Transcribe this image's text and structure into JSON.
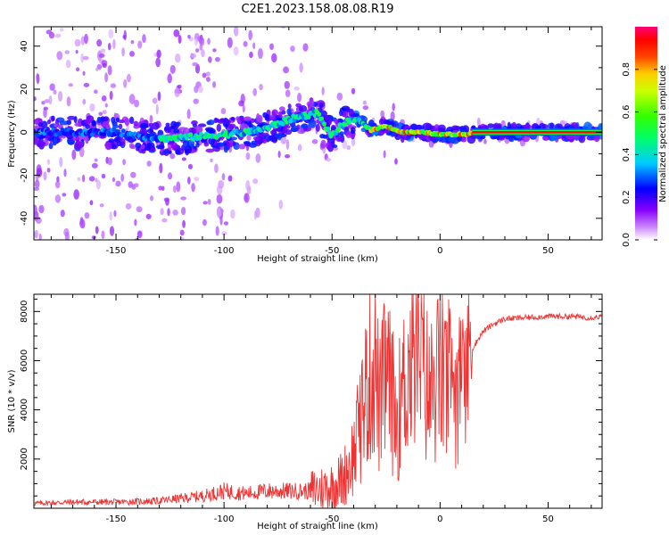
{
  "title": "C2E1.2023.158.08.08.R19",
  "colors": {
    "line": "#ee3333",
    "frame": "#000000"
  },
  "chart_data": [
    {
      "type": "heatmap",
      "xlabel": "Height of straight line (km)",
      "ylabel": "Frequency (Hz)",
      "xlim": [
        -188,
        75
      ],
      "ylim": [
        -50,
        49
      ],
      "x_ticks": [
        -150,
        -100,
        -50,
        0,
        50
      ],
      "y_ticks": [
        -40,
        -20,
        0,
        20,
        40
      ],
      "colorbar": {
        "label": "Normalized spectral amplitude",
        "range": [
          0.0,
          1.0
        ],
        "ticks": [
          0.0,
          0.2,
          0.4,
          0.6,
          0.8
        ],
        "tick_labels": [
          "0.0",
          "0.2",
          "0.4",
          "0.6",
          "0.8"
        ]
      },
      "ridge": [
        {
          "x": -188,
          "y": 0
        },
        {
          "x": -150,
          "y": 0
        },
        {
          "x": -130,
          "y": -3
        },
        {
          "x": -110,
          "y": -2
        },
        {
          "x": -90,
          "y": 0
        },
        {
          "x": -80,
          "y": 2
        },
        {
          "x": -70,
          "y": 6
        },
        {
          "x": -57,
          "y": 9
        },
        {
          "x": -50,
          "y": -2
        },
        {
          "x": -45,
          "y": 4
        },
        {
          "x": -38,
          "y": 6
        },
        {
          "x": -32,
          "y": 1
        },
        {
          "x": -25,
          "y": 3
        },
        {
          "x": -18,
          "y": 0
        },
        {
          "x": -8,
          "y": 0
        },
        {
          "x": 0,
          "y": -1
        },
        {
          "x": 10,
          "y": -1
        },
        {
          "x": 20,
          "y": 0
        },
        {
          "x": 75,
          "y": 0
        }
      ]
    },
    {
      "type": "line",
      "xlabel": "Height of straight line (km)",
      "ylabel": "SNR (10 * v/v)",
      "xlim": [
        -188,
        75
      ],
      "ylim": [
        0,
        8700
      ],
      "x_ticks": [
        -150,
        -100,
        -50,
        0,
        50
      ],
      "y_ticks": [
        2000,
        4000,
        6000,
        8000
      ],
      "series": [
        {
          "x": [
            -188,
            -170,
            -150,
            -130,
            -110,
            -100,
            -90,
            -80,
            -70,
            -60,
            -50,
            -45,
            -40,
            -38,
            -35,
            -30,
            -28,
            -25,
            -20,
            -15,
            -10,
            -5,
            0,
            5,
            10,
            15,
            20,
            25,
            30,
            40,
            50,
            60,
            70,
            75
          ],
          "y": [
            200,
            250,
            250,
            300,
            500,
            700,
            600,
            700,
            700,
            700,
            900,
            1200,
            2200,
            3000,
            4500,
            6000,
            4000,
            5500,
            3600,
            5600,
            6500,
            4600,
            5500,
            5000,
            5600,
            6500,
            7200,
            7500,
            7700,
            7750,
            7800,
            7800,
            7750,
            7800
          ]
        }
      ]
    }
  ]
}
